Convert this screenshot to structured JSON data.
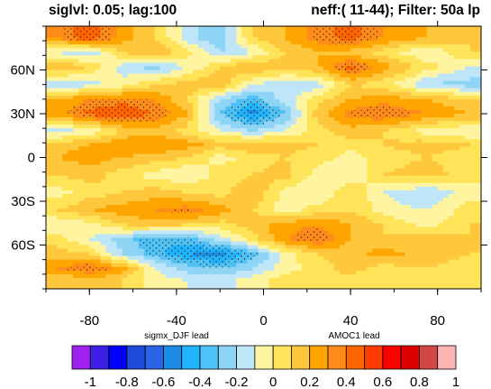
{
  "header": {
    "left": "siglvl: 0.05; lag:100",
    "right": "neff:( 11-44); Filter: 50a lp"
  },
  "chart_data": {
    "type": "heatmap",
    "title": "",
    "xlabel": "",
    "ylabel": "",
    "xlim": [
      -100,
      100
    ],
    "ylim": [
      -90,
      90
    ],
    "x_ticks": [
      -80,
      -40,
      0,
      40,
      80
    ],
    "x_tick_labels": [
      "-80",
      "-40",
      "0",
      "40",
      "80"
    ],
    "y_ticks": [
      60,
      30,
      0,
      -30,
      -60
    ],
    "y_tick_labels": [
      "60N",
      "30N",
      "0",
      "30S",
      "60S"
    ],
    "x_lead_labels": [
      "sigmx_DJF lead",
      "AMOC1 lead"
    ],
    "colorbar": {
      "levels": [
        -1,
        -0.9,
        -0.8,
        -0.7,
        -0.6,
        -0.5,
        -0.4,
        -0.3,
        -0.2,
        -0.1,
        0,
        0.1,
        0.2,
        0.3,
        0.4,
        0.5,
        0.6,
        0.7,
        0.8,
        0.9,
        1
      ],
      "labels": [
        "-1",
        "-0.8",
        "-0.6",
        "-0.4",
        "-0.2",
        "0",
        "0.2",
        "0.4",
        "0.6",
        "0.8",
        "1"
      ],
      "colors": [
        "#a020f0",
        "#3c1ee6",
        "#0000ff",
        "#1e4bdc",
        "#2a64e6",
        "#1c8ce6",
        "#1eb4ff",
        "#4fc3f7",
        "#8ed4f5",
        "#bfe6f8",
        "#fff5a0",
        "#ffe45a",
        "#ffc83c",
        "#ffa500",
        "#ff8c1a",
        "#ff6400",
        "#ff3c00",
        "#ff0000",
        "#dc0000",
        "#d24646",
        "#ffb4b4"
      ]
    },
    "stippling": "significant at 0.05",
    "bands": [
      {
        "lat": 82,
        "values": [
          0.3,
          0.5,
          0.25,
          0.1,
          -0.15,
          -0.3,
          0.1,
          0.2,
          0.35,
          0.45,
          0.3,
          0.2,
          0.1
        ]
      },
      {
        "lat": 72,
        "values": [
          -0.1,
          -0.2,
          0.1,
          0.2,
          0.05,
          -0.2,
          -0.1,
          0.1,
          0.2,
          0.15,
          0.05,
          -0.1,
          0.1
        ]
      },
      {
        "lat": 62,
        "values": [
          0.2,
          0.1,
          -0.15,
          -0.25,
          -0.1,
          0.1,
          0.2,
          0.15,
          0.2,
          0.45,
          0.25,
          0.05,
          -0.1
        ]
      },
      {
        "lat": 50,
        "values": [
          -0.2,
          -0.15,
          -0.05,
          0.1,
          0.15,
          0.2,
          -0.1,
          -0.2,
          -0.15,
          0.1,
          0.05,
          -0.2,
          -0.25
        ]
      },
      {
        "lat": 40,
        "values": [
          0.2,
          0.3,
          0.35,
          0.3,
          0.1,
          -0.2,
          -0.35,
          -0.15,
          0.05,
          0.2,
          0.25,
          0.2,
          0.1
        ]
      },
      {
        "lat": 30,
        "values": [
          0.25,
          0.45,
          0.5,
          0.4,
          0.2,
          -0.3,
          -0.55,
          -0.3,
          0.15,
          0.35,
          0.4,
          0.3,
          0.2
        ]
      },
      {
        "lat": 18,
        "values": [
          -0.15,
          -0.1,
          0.1,
          0.15,
          0.05,
          -0.1,
          -0.2,
          -0.1,
          0.05,
          0.15,
          0.1,
          -0.05,
          -0.1
        ]
      },
      {
        "lat": 9,
        "values": [
          0.15,
          0.2,
          0.3,
          0.3,
          0.25,
          0.15,
          0.2,
          0.15,
          0.1,
          0.05,
          0.1,
          0.15,
          0.1
        ]
      },
      {
        "lat": 0,
        "values": [
          0.2,
          0.25,
          0.2,
          0.15,
          0.1,
          -0.05,
          0.05,
          0.1,
          0.05,
          -0.05,
          0.05,
          0.1,
          0.05
        ]
      },
      {
        "lat": -12,
        "values": [
          0.1,
          0.15,
          0.05,
          -0.05,
          -0.1,
          0.05,
          0.1,
          0.15,
          -0.05,
          -0.1,
          0.1,
          0.15,
          0.05
        ]
      },
      {
        "lat": -24,
        "values": [
          -0.05,
          0.05,
          0.1,
          0.15,
          0.1,
          0.05,
          0.2,
          -0.05,
          -0.1,
          0.1,
          -0.1,
          -0.2,
          -0.05
        ]
      },
      {
        "lat": -36,
        "values": [
          0.1,
          0.2,
          0.25,
          0.3,
          0.35,
          0.25,
          0.1,
          -0.05,
          0.05,
          0.1,
          -0.05,
          -0.1,
          0.05
        ]
      },
      {
        "lat": -46,
        "values": [
          -0.1,
          -0.05,
          0.1,
          0.15,
          0.1,
          0.05,
          0.15,
          0.25,
          0.3,
          0.2,
          0.1,
          -0.05,
          0.1
        ]
      },
      {
        "lat": -56,
        "values": [
          0.05,
          -0.1,
          -0.25,
          -0.4,
          -0.35,
          -0.15,
          0.05,
          0.3,
          0.4,
          0.2,
          0.1,
          0.15,
          0.1
        ]
      },
      {
        "lat": -66,
        "values": [
          0.15,
          0.1,
          -0.2,
          -0.35,
          -0.5,
          -0.55,
          -0.35,
          -0.05,
          0.1,
          0.15,
          0.25,
          0.15,
          0.1
        ]
      },
      {
        "lat": -76,
        "values": [
          0.3,
          0.4,
          0.25,
          -0.1,
          -0.25,
          -0.3,
          -0.2,
          -0.05,
          0.05,
          0.15,
          0.05,
          0.1,
          0.05
        ]
      },
      {
        "lat": -84,
        "values": [
          0.1,
          0.15,
          0.1,
          -0.05,
          -0.1,
          -0.15,
          -0.05,
          0.05,
          0.1,
          0.05,
          0.05,
          0.1,
          0.05
        ]
      }
    ],
    "band_lons": [
      -95,
      -80,
      -65,
      -50,
      -35,
      -20,
      -5,
      10,
      25,
      40,
      55,
      75,
      95
    ]
  }
}
